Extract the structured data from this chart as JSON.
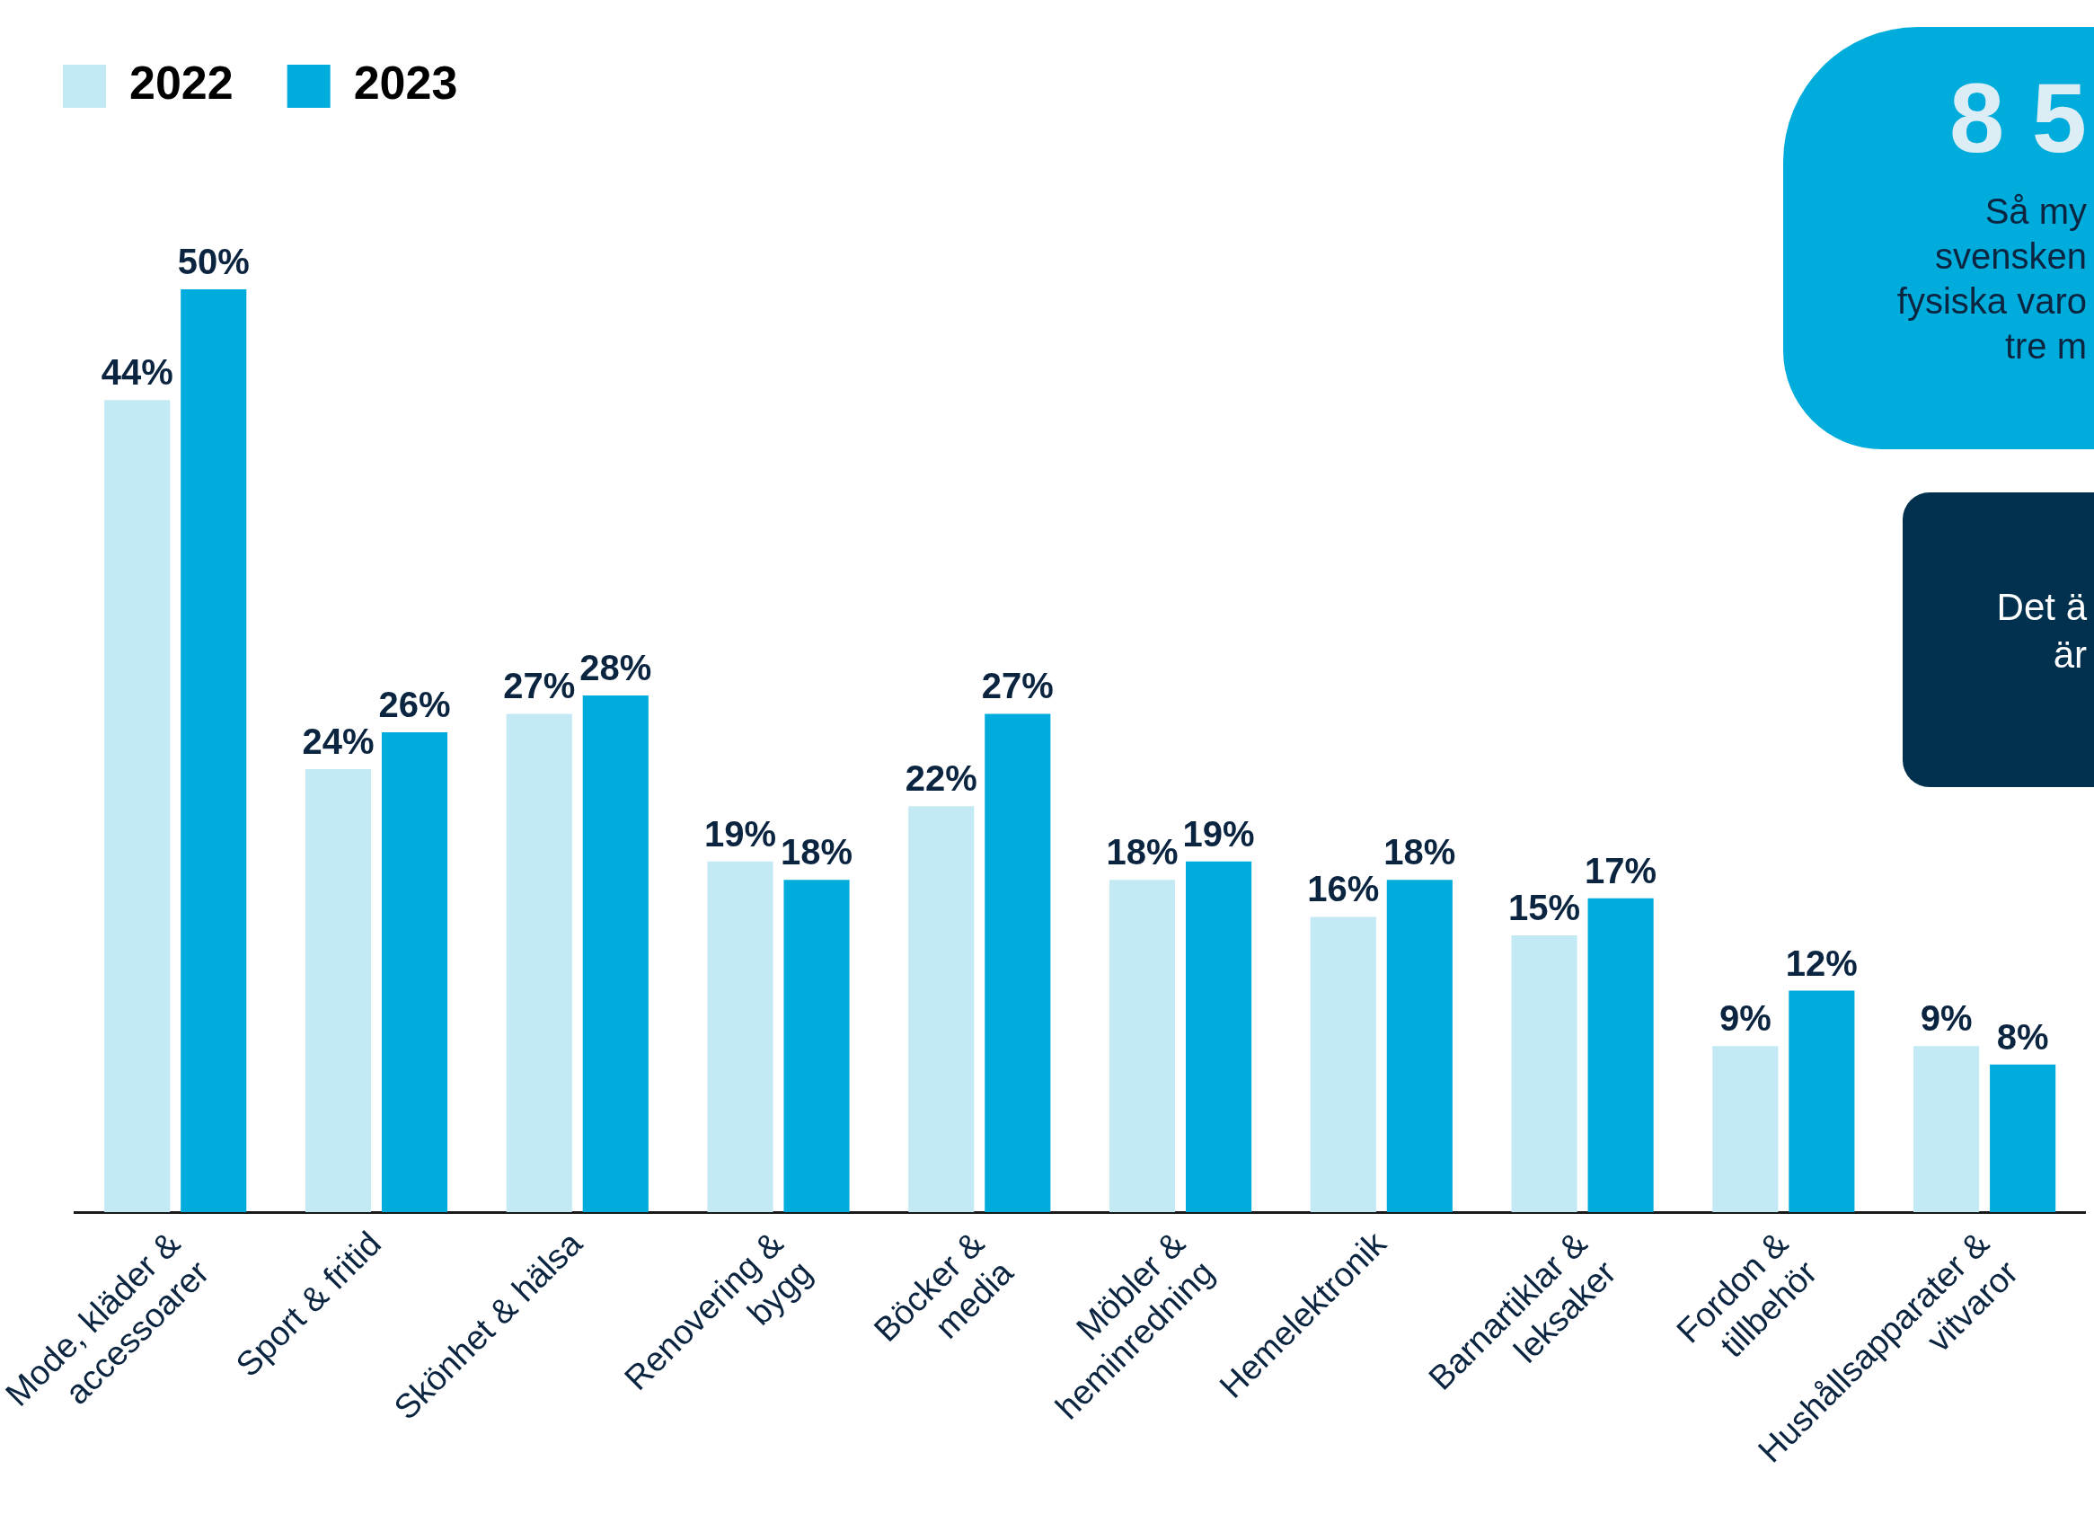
{
  "chart_data": {
    "type": "bar",
    "categories": [
      "Mode, kläder &\naccessoarer",
      "Sport & fritid",
      "Skönhet & hälsa",
      "Renovering &\nbygg",
      "Böcker &\nmedia",
      "Möbler &\nheminredning",
      "Hemelektronik",
      "Barnartiklar &\nleksaker",
      "Fordon &\ntillbehör",
      "Hushållsapparater &\nvitvaror"
    ],
    "series": [
      {
        "name": "2022",
        "color": "#c3e9f5",
        "values": [
          44,
          24,
          27,
          19,
          22,
          18,
          16,
          15,
          9,
          9
        ],
        "value_labels": [
          "44%",
          "24%",
          "27%",
          "19%",
          "22%",
          "18%",
          "16%",
          "15%",
          "9%",
          "9%"
        ]
      },
      {
        "name": "2023",
        "color": "#00acdb",
        "values": [
          50,
          26,
          28,
          18,
          27,
          19,
          18,
          17,
          12,
          8
        ],
        "value_labels": [
          "50%",
          "26%",
          "28%",
          "18%",
          "27%",
          "19%",
          "18%",
          "17%",
          "12%",
          "8%"
        ]
      }
    ],
    "ylim": [
      0,
      50
    ],
    "tick_labels": "x",
    "grid": false,
    "legend": "top left",
    "annotations": [
      "8 5",
      "Så my\nsvensken\nfysiska varo\ntre m",
      "Det ä\när"
    ]
  }
}
